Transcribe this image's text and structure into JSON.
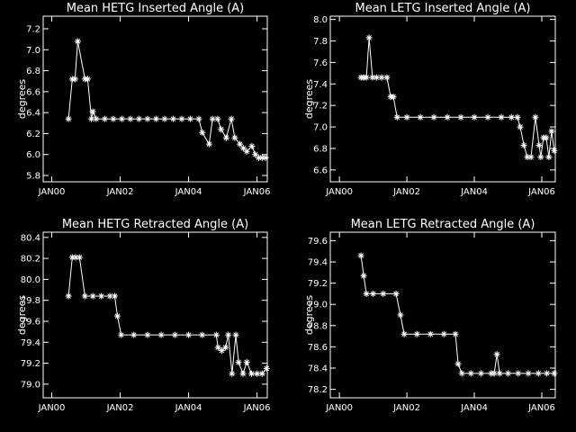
{
  "chart_data": [
    {
      "type": "line",
      "title": "Mean HETG Inserted Angle (A)",
      "y_label": "degrees",
      "color": "#ffffff",
      "x": [
        2000.49,
        2000.6,
        2000.68,
        2000.76,
        2000.97,
        2001.05,
        2001.16,
        2001.2,
        2001.3,
        2001.55,
        2001.8,
        2002.05,
        2002.3,
        2002.55,
        2002.8,
        2003.05,
        2003.3,
        2003.55,
        2003.8,
        2004.05,
        2004.3,
        2004.4,
        2004.6,
        2004.7,
        2004.85,
        2004.95,
        2005.1,
        2005.25,
        2005.35,
        2005.5,
        2005.6,
        2005.7,
        2005.85,
        2005.95,
        2006.05,
        2006.15,
        2006.25
      ],
      "values": [
        6.34,
        6.72,
        6.72,
        7.08,
        6.72,
        6.72,
        6.34,
        6.41,
        6.34,
        6.34,
        6.34,
        6.34,
        6.34,
        6.34,
        6.34,
        6.34,
        6.34,
        6.34,
        6.34,
        6.34,
        6.34,
        6.21,
        6.1,
        6.34,
        6.34,
        6.24,
        6.16,
        6.34,
        6.16,
        6.1,
        6.06,
        6.03,
        6.08,
        6.0,
        5.97,
        5.97,
        5.97
      ],
      "xlim": [
        1999.75,
        2006.3
      ],
      "ylim": [
        5.74,
        7.32
      ],
      "xticks": [
        {
          "value": 2000,
          "label": "JAN00"
        },
        {
          "value": 2002,
          "label": "JAN02"
        },
        {
          "value": 2004,
          "label": "JAN04"
        },
        {
          "value": 2006,
          "label": "JAN06"
        }
      ],
      "yticks": [
        5.8,
        {
          "value": 6,
          "label": "6.0"
        },
        6.2,
        6.4,
        6.6,
        6.8,
        {
          "value": 7,
          "label": "7.0"
        },
        7.2
      ]
    },
    {
      "type": "line",
      "title": "Mean LETG Inserted Angle (A)",
      "y_label": "degrees",
      "color": "#ffffff",
      "x": [
        2000.64,
        2000.72,
        2000.8,
        2000.88,
        2000.98,
        2001.1,
        2001.25,
        2001.41,
        2001.52,
        2001.6,
        2001.71,
        2002.0,
        2002.4,
        2002.8,
        2003.2,
        2003.6,
        2004.0,
        2004.4,
        2004.8,
        2005.1,
        2005.28,
        2005.36,
        2005.47,
        2005.57,
        2005.68,
        2005.81,
        2005.92,
        2005.97,
        2006.05,
        2006.13,
        2006.21,
        2006.29,
        2006.37
      ],
      "values": [
        7.46,
        7.46,
        7.46,
        7.83,
        7.46,
        7.46,
        7.46,
        7.46,
        7.28,
        7.28,
        7.09,
        7.09,
        7.09,
        7.09,
        7.09,
        7.09,
        7.09,
        7.09,
        7.09,
        7.09,
        7.09,
        7.0,
        6.83,
        6.72,
        6.72,
        7.09,
        6.83,
        6.72,
        6.9,
        6.9,
        6.72,
        6.96,
        6.78
      ],
      "xlim": [
        1999.73,
        2006.4
      ],
      "ylim": [
        6.49,
        8.03
      ],
      "xticks": [
        {
          "value": 2000,
          "label": "JAN00"
        },
        {
          "value": 2002,
          "label": "JAN02"
        },
        {
          "value": 2004,
          "label": "JAN04"
        },
        {
          "value": 2006,
          "label": "JAN06"
        }
      ],
      "yticks": [
        6.6,
        6.8,
        {
          "value": 7,
          "label": "7.0"
        },
        7.2,
        7.4,
        7.6,
        7.8,
        {
          "value": 8,
          "label": "8.0"
        }
      ]
    },
    {
      "type": "line",
      "title": "Mean HETG Retracted Angle (A)",
      "y_label": "degrees",
      "color": "#ffffff",
      "x": [
        2000.49,
        2000.6,
        2000.7,
        2000.81,
        2000.97,
        2001.2,
        2001.45,
        2001.7,
        2001.84,
        2001.92,
        2002.03,
        2002.4,
        2002.8,
        2003.2,
        2003.6,
        2004.0,
        2004.4,
        2004.81,
        2004.86,
        2004.97,
        2005.08,
        2005.16,
        2005.27,
        2005.38,
        2005.46,
        2005.59,
        2005.7,
        2005.84,
        2006.0,
        2006.15,
        2006.28
      ],
      "values": [
        79.84,
        80.21,
        80.21,
        80.21,
        79.84,
        79.84,
        79.84,
        79.84,
        79.84,
        79.65,
        79.47,
        79.47,
        79.47,
        79.47,
        79.47,
        79.47,
        79.47,
        79.47,
        79.35,
        79.32,
        79.35,
        79.47,
        79.1,
        79.47,
        79.21,
        79.1,
        79.21,
        79.1,
        79.1,
        79.1,
        79.15
      ],
      "xlim": [
        1999.75,
        2006.3
      ],
      "ylim": [
        78.87,
        80.45
      ],
      "xticks": [
        {
          "value": 2000,
          "label": "JAN00"
        },
        {
          "value": 2002,
          "label": "JAN02"
        },
        {
          "value": 2004,
          "label": "JAN04"
        },
        {
          "value": 2006,
          "label": "JAN06"
        }
      ],
      "yticks": [
        {
          "value": 79,
          "label": "79.0"
        },
        79.2,
        79.4,
        79.6,
        79.8,
        {
          "value": 80,
          "label": "80.0"
        },
        80.2,
        80.4
      ]
    },
    {
      "type": "line",
      "title": "Mean LETG Retracted Angle (A)",
      "y_label": "degrees",
      "color": "#ffffff",
      "x": [
        2000.64,
        2000.72,
        2000.8,
        2001.0,
        2001.3,
        2001.68,
        2001.81,
        2001.92,
        2002.3,
        2002.7,
        2003.1,
        2003.44,
        2003.52,
        2003.63,
        2003.9,
        2004.2,
        2004.5,
        2004.59,
        2004.67,
        2004.75,
        2005.0,
        2005.3,
        2005.6,
        2005.9,
        2006.15,
        2006.37
      ],
      "values": [
        79.46,
        79.27,
        79.1,
        79.1,
        79.1,
        79.1,
        78.9,
        78.72,
        78.72,
        78.72,
        78.72,
        78.72,
        78.44,
        78.35,
        78.35,
        78.35,
        78.35,
        78.35,
        78.53,
        78.35,
        78.35,
        78.35,
        78.35,
        78.35,
        78.35,
        78.35
      ],
      "xlim": [
        1999.73,
        2006.4
      ],
      "ylim": [
        78.12,
        79.68
      ],
      "xticks": [
        {
          "value": 2000,
          "label": "JAN00"
        },
        {
          "value": 2002,
          "label": "JAN02"
        },
        {
          "value": 2004,
          "label": "JAN04"
        },
        {
          "value": 2006,
          "label": "JAN06"
        }
      ],
      "yticks": [
        78.2,
        78.4,
        78.6,
        78.8,
        {
          "value": 79,
          "label": "79.0"
        },
        79.2,
        79.4,
        79.6
      ]
    }
  ]
}
